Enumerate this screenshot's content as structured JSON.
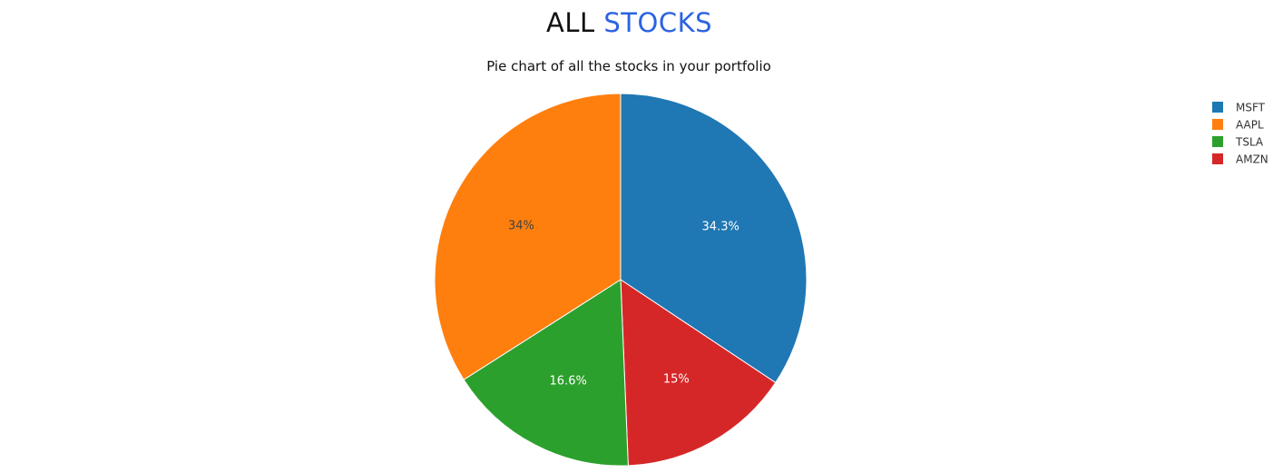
{
  "page": {
    "heading_part1": "ALL",
    "heading_part2": "STOCKS",
    "accent_color": "#2b63e0"
  },
  "chart_data": {
    "type": "pie",
    "title": "Pie chart of all the stocks in your portfolio",
    "legend_position": "top-right",
    "slices": [
      {
        "label": "MSFT",
        "value": 34.3,
        "text": "34.3%",
        "color": "#1f77b4",
        "text_color": "#ffffff"
      },
      {
        "label": "AAPL",
        "value": 34.0,
        "text": "34%",
        "color": "#ff7f0e",
        "text_color": "#444444"
      },
      {
        "label": "TSLA",
        "value": 16.6,
        "text": "16.6%",
        "color": "#2ca02c",
        "text_color": "#ffffff"
      },
      {
        "label": "AMZN",
        "value": 15.0,
        "text": "15%",
        "color": "#d62728",
        "text_color": "#ffffff"
      }
    ],
    "draw_order": [
      "MSFT",
      "AMZN",
      "TSLA",
      "AAPL"
    ]
  }
}
